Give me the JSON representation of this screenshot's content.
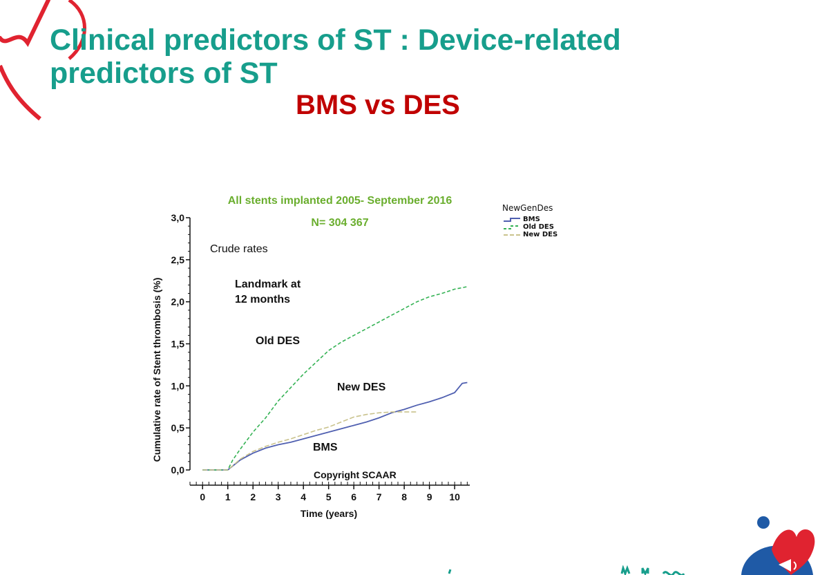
{
  "slide": {
    "title": "Clinical predictors of ST : Device-related predictors of ST",
    "subtitle": "BMS vs DES"
  },
  "colors": {
    "title": "#179e8c",
    "subtitle": "#c00000",
    "annotation_green": "#6aae2e",
    "bms": "#4f5fb0",
    "old_des": "#34b254",
    "new_des": "#c9c28c",
    "brand_red": "#e02330",
    "brand_blue": "#1f5aa6"
  },
  "chart_data": {
    "type": "line",
    "title": "All stents implanted 2005- September 2016",
    "subtitle": "N= 304 367",
    "xlabel": "Time (years)",
    "ylabel": "Cumulative rate of Stent thrombosis (%)",
    "xlim": [
      -0.5,
      10.6
    ],
    "ylim": [
      0,
      3.0
    ],
    "xticks": [
      "0",
      "1",
      "2",
      "3",
      "4",
      "5",
      "6",
      "7",
      "8",
      "9",
      "10"
    ],
    "yticks": [
      "0,0",
      "0,5",
      "1,0",
      "1,5",
      "2,0",
      "2,5",
      "3,0"
    ],
    "annotations": {
      "crude": "Crude rates",
      "landmark": "Landmark at\n12 months",
      "old_des": "Old DES",
      "new_des": "New DES",
      "bms": "BMS",
      "copyright": "Copyright SCAAR"
    },
    "legend": {
      "title": "NewGenDes",
      "position": "right"
    },
    "series": [
      {
        "name": "BMS",
        "style": "solid",
        "x": [
          0,
          1,
          1.5,
          2,
          2.5,
          3,
          3.5,
          4,
          4.5,
          5,
          5.5,
          6,
          6.5,
          7,
          7.5,
          8,
          8.5,
          9,
          9.5,
          10,
          10.3,
          10.5
        ],
        "y": [
          0,
          0,
          0.12,
          0.2,
          0.26,
          0.3,
          0.33,
          0.37,
          0.41,
          0.45,
          0.49,
          0.53,
          0.57,
          0.62,
          0.68,
          0.72,
          0.77,
          0.81,
          0.86,
          0.92,
          1.03,
          1.04
        ]
      },
      {
        "name": "Old DES",
        "style": "dashed",
        "x": [
          0,
          1,
          1.2,
          1.5,
          2,
          2.5,
          3,
          3.5,
          4,
          4.5,
          5,
          5.5,
          6,
          6.5,
          7,
          7.5,
          8,
          8.5,
          9,
          9.5,
          10,
          10.5
        ],
        "y": [
          0,
          0,
          0.12,
          0.25,
          0.45,
          0.62,
          0.82,
          0.98,
          1.14,
          1.28,
          1.42,
          1.52,
          1.6,
          1.68,
          1.76,
          1.84,
          1.92,
          2.0,
          2.06,
          2.1,
          2.15,
          2.18
        ]
      },
      {
        "name": "New DES",
        "style": "dashed",
        "x": [
          0,
          1,
          1.5,
          2,
          2.5,
          3,
          3.5,
          4,
          4.5,
          5,
          5.5,
          6,
          6.5,
          7,
          7.5,
          8,
          8.5
        ],
        "y": [
          0,
          0,
          0.13,
          0.22,
          0.28,
          0.33,
          0.37,
          0.42,
          0.47,
          0.51,
          0.57,
          0.63,
          0.66,
          0.68,
          0.69,
          0.69,
          0.69
        ]
      }
    ]
  }
}
